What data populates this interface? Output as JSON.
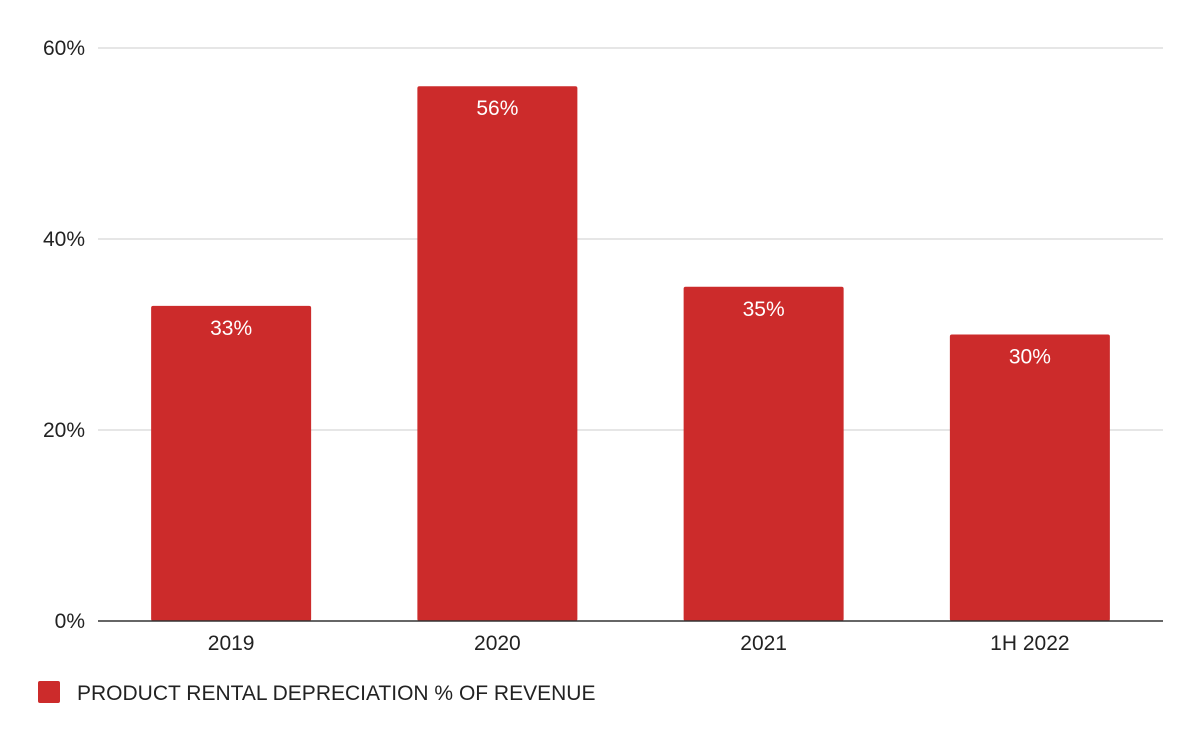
{
  "chart_data": {
    "type": "bar",
    "categories": [
      "2019",
      "2020",
      "2021",
      "1H 2022"
    ],
    "series": [
      {
        "name": "PRODUCT RENTAL DEPRECIATION % OF REVENUE",
        "values": [
          33,
          56,
          35,
          30
        ],
        "labels": [
          "33%",
          "56%",
          "35%",
          "30%"
        ],
        "color": "#cc2b2b"
      }
    ],
    "yticks": [
      {
        "value": 0,
        "label": "0%"
      },
      {
        "value": 20,
        "label": "20%"
      },
      {
        "value": 40,
        "label": "40%"
      },
      {
        "value": 60,
        "label": "60%"
      }
    ],
    "ylim": [
      0,
      60
    ],
    "grid": true,
    "legend_position": "bottom-left",
    "title": "",
    "xlabel": "",
    "ylabel": ""
  }
}
